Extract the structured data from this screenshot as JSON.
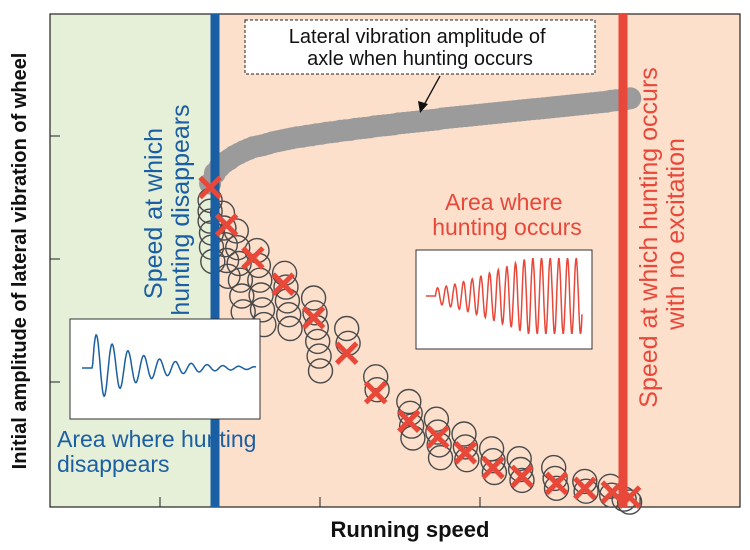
{
  "chart_data": {
    "type": "scatter",
    "xlabel": "Running speed",
    "ylabel": "Initial amplitude of lateral vibration of wheel",
    "x_unit": "normalized running speed (0–1, no tick labels shown)",
    "y_unit": "normalized amplitude (0–1, no tick labels shown)",
    "xlim": [
      0,
      1
    ],
    "ylim": [
      0,
      1
    ],
    "grid": false,
    "thresholds": {
      "hunting_disappears": {
        "x": 0.232,
        "label": "Speed at which hunting disappears",
        "color": "#1a5fa3"
      },
      "hunting_no_excitation": {
        "x": 0.821,
        "label": "Speed at which hunting occurs with no excitation",
        "color": "#e8483a"
      }
    },
    "regions": {
      "disappears": {
        "label": "Area where hunting disappears",
        "color": "#e6efd7"
      },
      "occurs": {
        "label": "Area where hunting occurs",
        "color": "#fde0cc"
      }
    },
    "callout": "Lateral vibration amplitude of axle when hunting occurs",
    "series": [
      {
        "kind": "filled-gray",
        "color": "#9b9b9b",
        "x": [
          0.232,
          0.239,
          0.246,
          0.253,
          0.26,
          0.267,
          0.274,
          0.281,
          0.288,
          0.295,
          0.302,
          0.309,
          0.316,
          0.323,
          0.33,
          0.337,
          0.344,
          0.351,
          0.358,
          0.365,
          0.372,
          0.379,
          0.386,
          0.393,
          0.4,
          0.407,
          0.414,
          0.421,
          0.428,
          0.435,
          0.442,
          0.449,
          0.456,
          0.463,
          0.47,
          0.477,
          0.484,
          0.491,
          0.498,
          0.505,
          0.512,
          0.519,
          0.526,
          0.533,
          0.54,
          0.547,
          0.554,
          0.561,
          0.568,
          0.575,
          0.582,
          0.589,
          0.596,
          0.603,
          0.61,
          0.617,
          0.624,
          0.631,
          0.638,
          0.645,
          0.652,
          0.659,
          0.666,
          0.673,
          0.68,
          0.687,
          0.694,
          0.701,
          0.708,
          0.715,
          0.722,
          0.729,
          0.736,
          0.743,
          0.75,
          0.757,
          0.764,
          0.771,
          0.778,
          0.785,
          0.792,
          0.799,
          0.806,
          0.813,
          0.82,
          0.827,
          0.834,
          0.841
        ],
        "y": [
          0.656,
          0.677,
          0.69,
          0.699,
          0.705,
          0.712,
          0.717,
          0.722,
          0.726,
          0.73,
          0.732,
          0.734,
          0.737,
          0.74,
          0.742,
          0.744,
          0.746,
          0.748,
          0.75,
          0.751,
          0.753,
          0.754,
          0.756,
          0.757,
          0.759,
          0.76,
          0.761,
          0.763,
          0.764,
          0.765,
          0.767,
          0.768,
          0.769,
          0.77,
          0.772,
          0.773,
          0.774,
          0.775,
          0.776,
          0.778,
          0.779,
          0.78,
          0.781,
          0.782,
          0.783,
          0.784,
          0.785,
          0.786,
          0.788,
          0.789,
          0.79,
          0.791,
          0.792,
          0.793,
          0.794,
          0.795,
          0.796,
          0.797,
          0.798,
          0.799,
          0.8,
          0.801,
          0.802,
          0.803,
          0.804,
          0.805,
          0.806,
          0.807,
          0.808,
          0.809,
          0.81,
          0.811,
          0.812,
          0.813,
          0.814,
          0.815,
          0.816,
          0.817,
          0.818,
          0.819,
          0.82,
          0.821,
          0.822,
          0.824,
          0.825,
          0.826,
          0.827,
          0.829
        ]
      },
      {
        "kind": "open-circle",
        "color": "#4a4a4a",
        "points": [
          [
            0.232,
            0.622
          ],
          [
            0.232,
            0.6
          ],
          [
            0.232,
            0.58
          ],
          [
            0.234,
            0.556
          ],
          [
            0.234,
            0.527
          ],
          [
            0.236,
            0.498
          ],
          [
            0.25,
            0.596
          ],
          [
            0.252,
            0.566
          ],
          [
            0.254,
            0.532
          ],
          [
            0.256,
            0.5
          ],
          [
            0.258,
            0.468
          ],
          [
            0.27,
            0.56
          ],
          [
            0.272,
            0.526
          ],
          [
            0.274,
            0.494
          ],
          [
            0.276,
            0.46
          ],
          [
            0.278,
            0.428
          ],
          [
            0.28,
            0.396
          ],
          [
            0.3,
            0.52
          ],
          [
            0.302,
            0.49
          ],
          [
            0.304,
            0.46
          ],
          [
            0.306,
            0.43
          ],
          [
            0.308,
            0.4
          ],
          [
            0.31,
            0.37
          ],
          [
            0.34,
            0.474
          ],
          [
            0.342,
            0.446
          ],
          [
            0.344,
            0.418
          ],
          [
            0.346,
            0.39
          ],
          [
            0.348,
            0.362
          ],
          [
            0.382,
            0.424
          ],
          [
            0.384,
            0.394
          ],
          [
            0.386,
            0.364
          ],
          [
            0.388,
            0.336
          ],
          [
            0.39,
            0.306
          ],
          [
            0.392,
            0.276
          ],
          [
            0.43,
            0.362
          ],
          [
            0.432,
            0.332
          ],
          [
            0.472,
            0.264
          ],
          [
            0.474,
            0.238
          ],
          [
            0.52,
            0.214
          ],
          [
            0.522,
            0.19
          ],
          [
            0.524,
            0.164
          ],
          [
            0.526,
            0.14
          ],
          [
            0.56,
            0.178
          ],
          [
            0.562,
            0.152
          ],
          [
            0.564,
            0.126
          ],
          [
            0.566,
            0.1
          ],
          [
            0.6,
            0.148
          ],
          [
            0.602,
            0.122
          ],
          [
            0.604,
            0.096
          ],
          [
            0.64,
            0.118
          ],
          [
            0.642,
            0.094
          ],
          [
            0.644,
            0.07
          ],
          [
            0.68,
            0.098
          ],
          [
            0.682,
            0.076
          ],
          [
            0.684,
            0.054
          ],
          [
            0.73,
            0.08
          ],
          [
            0.732,
            0.058
          ],
          [
            0.734,
            0.038
          ],
          [
            0.775,
            0.052
          ],
          [
            0.777,
            0.032
          ],
          [
            0.812,
            0.042
          ],
          [
            0.814,
            0.024
          ],
          [
            0.832,
            0.016
          ],
          [
            0.84,
            0.01
          ]
        ]
      },
      {
        "kind": "red-cross",
        "color": "#e8483a",
        "points": [
          [
            0.232,
            0.648
          ],
          [
            0.256,
            0.572
          ],
          [
            0.294,
            0.505
          ],
          [
            0.338,
            0.452
          ],
          [
            0.382,
            0.384
          ],
          [
            0.43,
            0.312
          ],
          [
            0.472,
            0.232
          ],
          [
            0.52,
            0.174
          ],
          [
            0.562,
            0.142
          ],
          [
            0.602,
            0.11
          ],
          [
            0.642,
            0.08
          ],
          [
            0.684,
            0.062
          ],
          [
            0.734,
            0.048
          ],
          [
            0.775,
            0.038
          ],
          [
            0.815,
            0.03
          ],
          [
            0.84,
            0.02
          ]
        ]
      }
    ]
  },
  "text": {
    "ylabel": "Initial amplitude of lateral vibration of wheel",
    "xlabel": "Running speed",
    "callout_line1": "Lateral vibration amplitude of",
    "callout_line2": "axle when hunting occurs",
    "vline_blue_line1": "Speed at which",
    "vline_blue_line2": "hunting disappears",
    "vline_red_line1": "Speed at which hunting occurs",
    "vline_red_line2": "with no excitation",
    "region_disappear_line1": "Area where hunting",
    "region_disappear_line2": "disappears",
    "region_occur_line1": "Area where",
    "region_occur_line2": "hunting occurs"
  },
  "colors": {
    "blue": "#1a5fa3",
    "red": "#e8483a",
    "region_green": "#e6efd7",
    "region_peach": "#fde0cc",
    "gray_fill": "#9b9b9b",
    "circle_edge": "#4a4a4a"
  }
}
